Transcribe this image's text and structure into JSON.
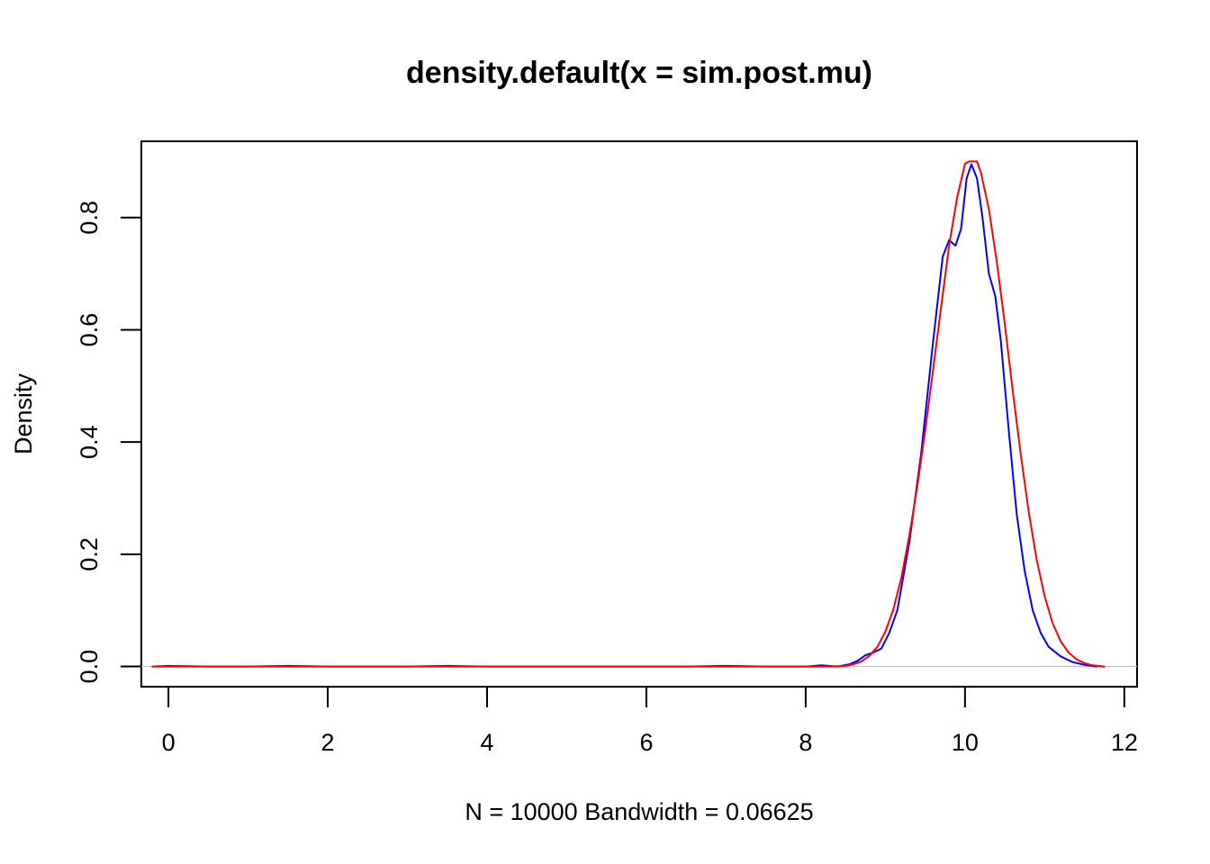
{
  "chart_data": {
    "type": "line",
    "title": "density.default(x = sim.post.mu)",
    "xlabel": "N = 10000   Bandwidth = 0.06625",
    "ylabel": "Density",
    "xlim": [
      -0.34,
      12.16
    ],
    "ylim": [
      -0.036,
      0.936
    ],
    "x_ticks": [
      0,
      2,
      4,
      6,
      8,
      10,
      12
    ],
    "y_ticks": [
      0.0,
      0.2,
      0.4,
      0.6,
      0.8
    ],
    "x_tick_labels": [
      "0",
      "2",
      "4",
      "6",
      "8",
      "10",
      "12"
    ],
    "y_tick_labels": [
      "0.0",
      "0.2",
      "0.4",
      "0.6",
      "0.8"
    ],
    "grid": false,
    "zero_line": true,
    "series": [
      {
        "color": "#0000ff",
        "x": [
          -0.2,
          0.0,
          0.5,
          1.0,
          1.5,
          2.0,
          2.5,
          3.0,
          3.5,
          4.0,
          4.5,
          5.0,
          5.5,
          6.0,
          6.5,
          7.0,
          7.5,
          8.0,
          8.2,
          8.4,
          8.55,
          8.65,
          8.75,
          8.85,
          8.95,
          9.05,
          9.15,
          9.3,
          9.45,
          9.6,
          9.72,
          9.8,
          9.88,
          9.95,
          10.02,
          10.08,
          10.15,
          10.22,
          10.3,
          10.38,
          10.45,
          10.55,
          10.65,
          10.75,
          10.85,
          10.95,
          11.05,
          11.2,
          11.35,
          11.5,
          11.65
        ],
        "y": [
          0.0,
          0.001,
          0.0,
          0.0,
          0.001,
          0.0,
          0.0,
          0.0,
          0.001,
          0.0,
          0.0,
          0.0,
          0.0,
          0.0,
          0.0,
          0.001,
          0.0,
          0.0,
          0.002,
          0.0,
          0.004,
          0.01,
          0.02,
          0.025,
          0.032,
          0.06,
          0.1,
          0.22,
          0.38,
          0.58,
          0.73,
          0.76,
          0.75,
          0.78,
          0.87,
          0.895,
          0.87,
          0.8,
          0.7,
          0.66,
          0.58,
          0.42,
          0.27,
          0.17,
          0.1,
          0.06,
          0.035,
          0.018,
          0.008,
          0.003,
          0.0
        ]
      },
      {
        "color": "#ff0000",
        "x": [
          -0.2,
          0.0,
          1.0,
          2.0,
          3.0,
          4.0,
          5.0,
          6.0,
          7.0,
          8.0,
          8.3,
          8.5,
          8.6,
          8.7,
          8.8,
          8.9,
          9.0,
          9.1,
          9.2,
          9.3,
          9.4,
          9.5,
          9.6,
          9.7,
          9.8,
          9.9,
          10.0,
          10.05,
          10.1,
          10.15,
          10.2,
          10.3,
          10.4,
          10.5,
          10.6,
          10.7,
          10.8,
          10.9,
          11.0,
          11.1,
          11.2,
          11.3,
          11.4,
          11.5,
          11.6,
          11.75
        ],
        "y": [
          0.0,
          0.0,
          0.0,
          0.0,
          0.0,
          0.0,
          0.0,
          0.0,
          0.0,
          0.0,
          0.0,
          0.001,
          0.004,
          0.009,
          0.019,
          0.035,
          0.062,
          0.102,
          0.158,
          0.232,
          0.32,
          0.42,
          0.53,
          0.64,
          0.75,
          0.835,
          0.896,
          0.9,
          0.9,
          0.9,
          0.88,
          0.815,
          0.72,
          0.61,
          0.49,
          0.378,
          0.275,
          0.19,
          0.125,
          0.077,
          0.045,
          0.025,
          0.013,
          0.006,
          0.002,
          0.0
        ]
      }
    ]
  }
}
